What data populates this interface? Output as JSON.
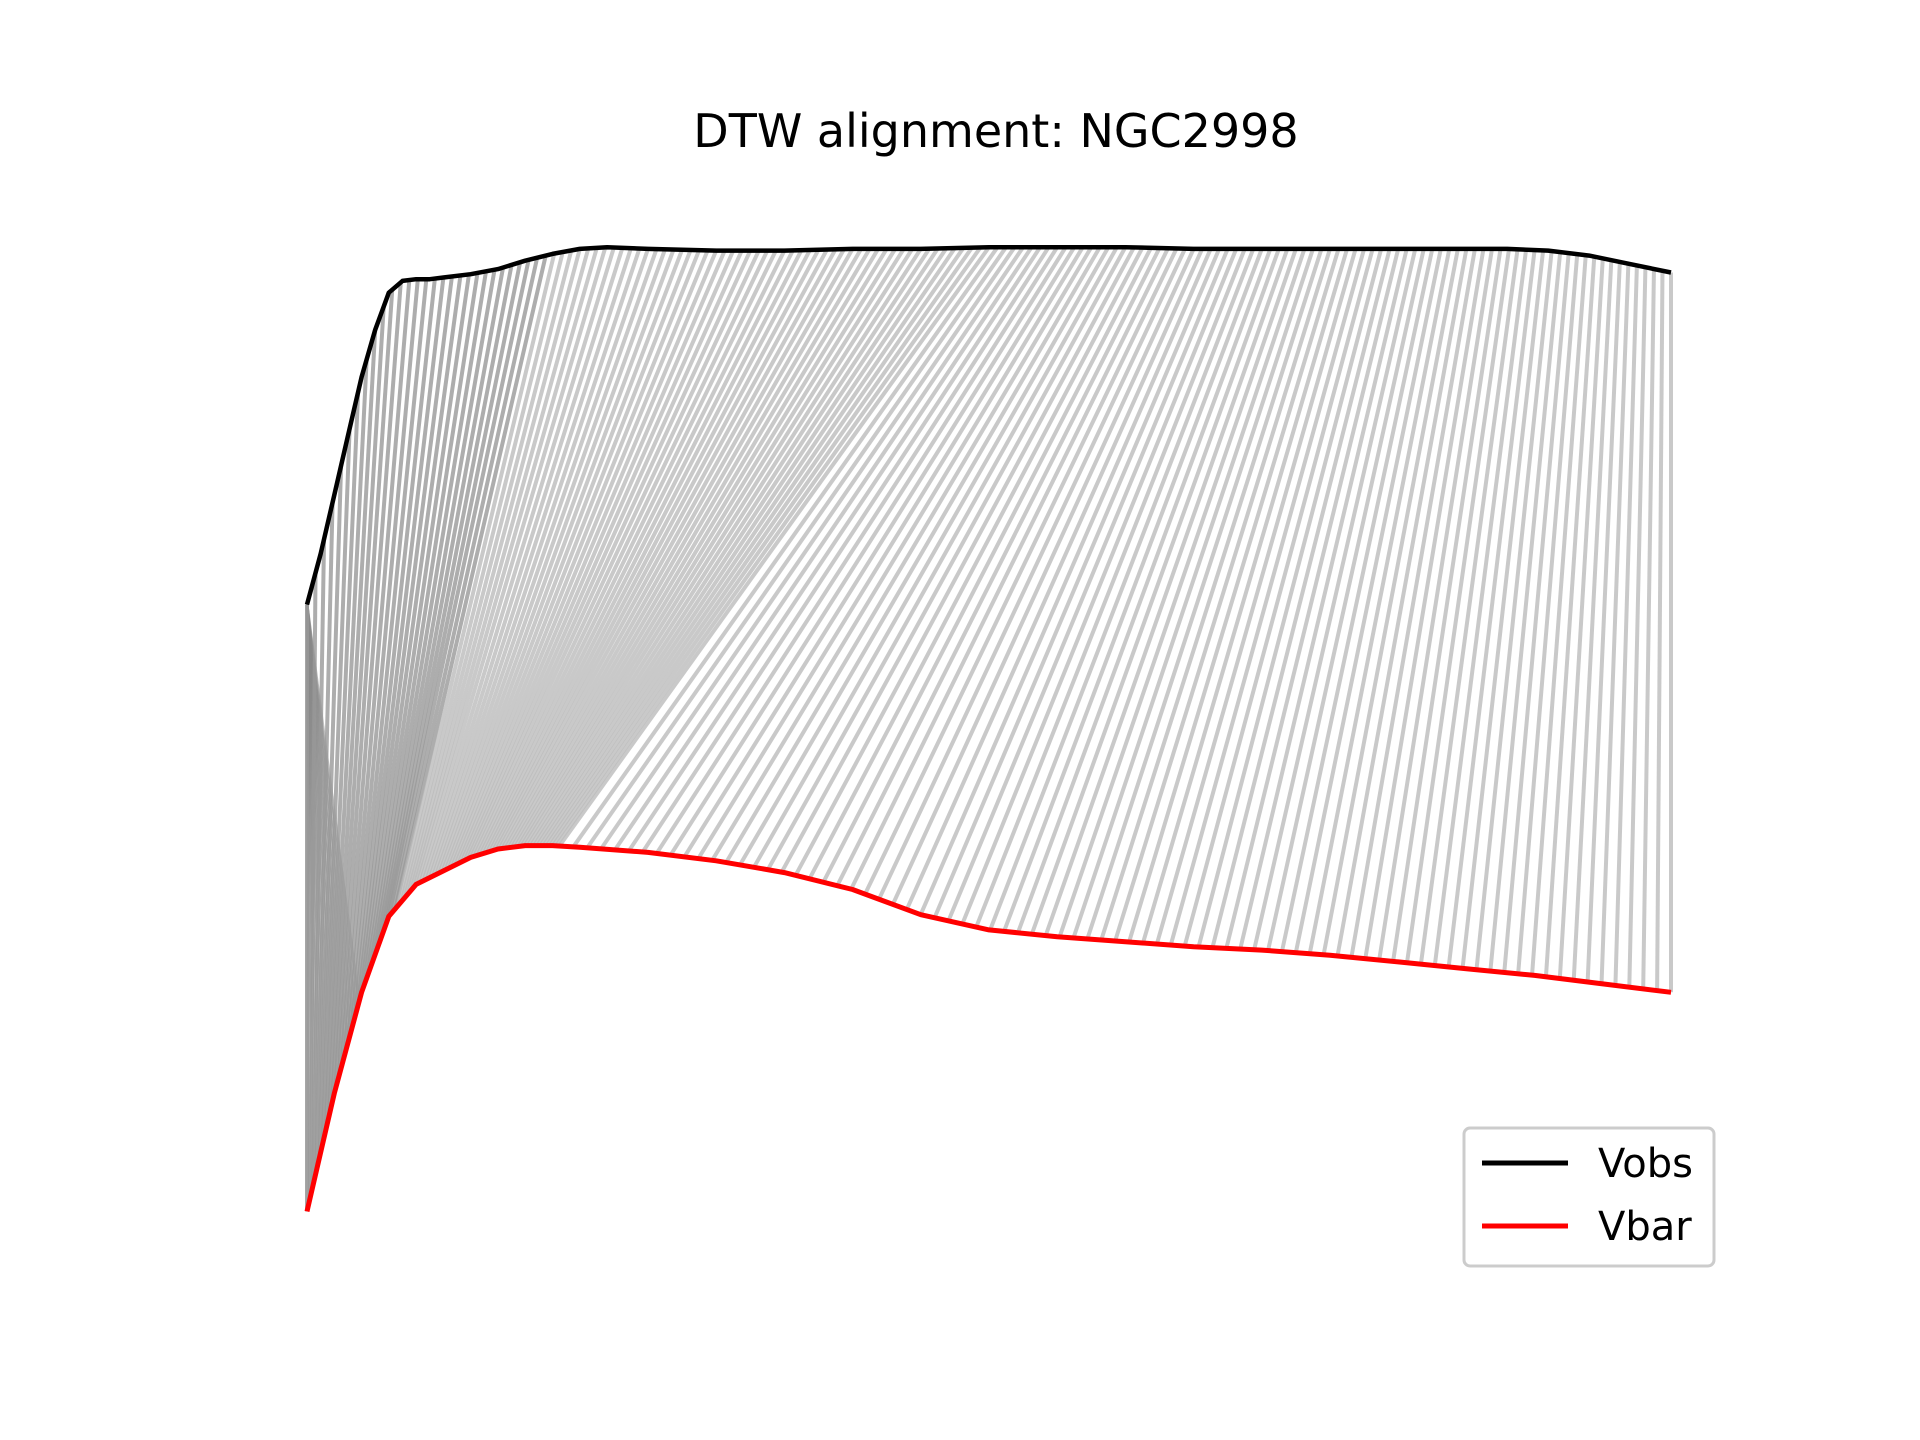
{
  "chart_data": {
    "type": "line",
    "title": "DTW alignment: NGC2998",
    "xlabel": "",
    "ylabel": "",
    "axes_visible": false,
    "grid": false,
    "legend_position": "lower right",
    "connector_color": "#bbbbbb",
    "series": [
      {
        "name": "Vobs",
        "color": "#000000",
        "x": [
          0.0,
          0.01,
          0.02,
          0.03,
          0.04,
          0.05,
          0.06,
          0.07,
          0.08,
          0.09,
          0.1,
          0.12,
          0.14,
          0.16,
          0.18,
          0.2,
          0.22,
          0.25,
          0.3,
          0.35,
          0.4,
          0.45,
          0.5,
          0.55,
          0.6,
          0.65,
          0.7,
          0.75,
          0.8,
          0.85,
          0.88,
          0.91,
          0.94,
          0.97,
          1.0
        ],
        "values": [
          0.76,
          0.79,
          0.825,
          0.86,
          0.895,
          0.923,
          0.945,
          0.952,
          0.953,
          0.953,
          0.954,
          0.956,
          0.959,
          0.964,
          0.968,
          0.971,
          0.972,
          0.971,
          0.97,
          0.97,
          0.971,
          0.971,
          0.972,
          0.972,
          0.972,
          0.971,
          0.971,
          0.971,
          0.971,
          0.971,
          0.971,
          0.97,
          0.967,
          0.962,
          0.957
        ]
      },
      {
        "name": "Vbar",
        "color": "#ff0000",
        "x": [
          0.0,
          0.02,
          0.04,
          0.06,
          0.08,
          0.1,
          0.12,
          0.14,
          0.16,
          0.18,
          0.2,
          0.25,
          0.3,
          0.35,
          0.4,
          0.45,
          0.5,
          0.55,
          0.6,
          0.65,
          0.7,
          0.75,
          0.8,
          0.85,
          0.9,
          0.95,
          1.0
        ],
        "values": [
          0.4,
          0.47,
          0.53,
          0.575,
          0.594,
          0.602,
          0.61,
          0.615,
          0.617,
          0.617,
          0.616,
          0.613,
          0.608,
          0.601,
          0.591,
          0.576,
          0.567,
          0.563,
          0.56,
          0.557,
          0.555,
          0.552,
          0.548,
          0.544,
          0.54,
          0.535,
          0.53
        ]
      }
    ],
    "legend": [
      {
        "label": "Vobs",
        "color": "#000000"
      },
      {
        "label": "Vbar",
        "color": "#ff0000"
      }
    ]
  }
}
